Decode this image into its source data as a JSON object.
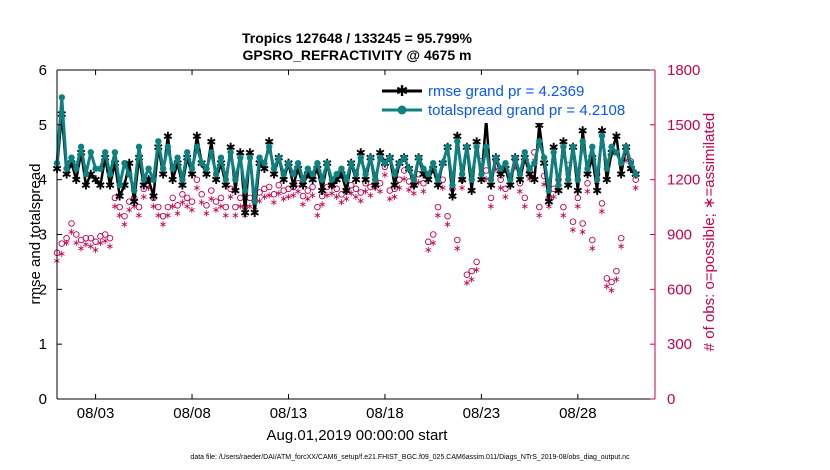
{
  "chart_data": {
    "type": "line",
    "title": "Tropics 127648 / 133245 = 95.799%",
    "subtitle": "GPSRO_REFRACTIVITY @ 4675 m",
    "xlabel": "Aug.01,2019 00:00:00 start",
    "ylabel": "rmse and totalspread",
    "ylabel_right": "# of obs: o=possible; ∗=assimilated",
    "xlim": [
      1.0,
      32.0
    ],
    "ylim": [
      0,
      6
    ],
    "ylim_right": [
      0,
      1800
    ],
    "x_ticks": [
      3,
      8,
      13,
      18,
      23,
      28
    ],
    "x_tick_labels": [
      "08/03",
      "08/08",
      "08/13",
      "08/18",
      "08/23",
      "08/28"
    ],
    "y_ticks": [
      0,
      1,
      2,
      3,
      4,
      5,
      6
    ],
    "y_ticks_right": [
      0,
      300,
      600,
      900,
      1200,
      1500,
      1800
    ],
    "legend_position": "top-right",
    "footnote": "data file: /Users/raeder/DAI/ATM_forcXX/CAM6_setup/f.e21.FHIST_BGC.f09_025.CAM6assim.011/Diags_NTrS_2019-08/obs_diag_output.nc",
    "time_step_days": 0.25,
    "series": [
      {
        "name": "rmse grand pr = 4.2369",
        "axis": "left",
        "color": "#000000",
        "marker": "star",
        "values": [
          4.2,
          5.2,
          4.1,
          4.3,
          4.0,
          4.5,
          3.9,
          4.1,
          4.0,
          3.9,
          4.4,
          3.9,
          4.3,
          3.7,
          3.9,
          4.3,
          3.6,
          4.4,
          3.9,
          4.0,
          3.7,
          4.6,
          4.1,
          4.8,
          4.0,
          4.3,
          3.9,
          4.4,
          4.1,
          4.8,
          4.3,
          4.1,
          4.7,
          4.0,
          4.3,
          3.9,
          4.6,
          3.8,
          4.5,
          3.4,
          4.5,
          3.4,
          4.3,
          4.2,
          4.7,
          4.1,
          4.4,
          4.0,
          4.3,
          3.9,
          4.2,
          3.9,
          4.1,
          4.0,
          4.2,
          3.8,
          4.3,
          3.9,
          4.0,
          4.1,
          3.8,
          4.3,
          4.0,
          4.5,
          4.0,
          4.4,
          3.9,
          4.5,
          4.3,
          4.4,
          3.9,
          4.3,
          4.4,
          4.2,
          3.9,
          4.4,
          4.1,
          4.0,
          4.2,
          3.9,
          4.3,
          4.6,
          3.7,
          4.8,
          4.0,
          4.6,
          3.8,
          4.7,
          4.0,
          5.1,
          3.9,
          4.4,
          4.1,
          4.2,
          3.9,
          4.4,
          4.0,
          4.4,
          4.1,
          4.0,
          5.0,
          4.3,
          3.6,
          4.6,
          3.8,
          4.7,
          3.9,
          4.6,
          3.8,
          4.9,
          4.1,
          4.4,
          3.8,
          4.9,
          4.0,
          4.5,
          4.8,
          4.1,
          4.6,
          4.2,
          4.1
        ]
      },
      {
        "name": "totalspread grand pr = 4.2108",
        "axis": "left",
        "color": "#0e8080",
        "marker": "circle",
        "values": [
          4.3,
          5.5,
          4.2,
          4.4,
          4.2,
          4.6,
          4.1,
          4.5,
          4.2,
          4.2,
          4.5,
          4.1,
          4.5,
          3.9,
          4.3,
          4.1,
          3.8,
          4.6,
          4.0,
          4.2,
          4.0,
          4.7,
          4.2,
          4.6,
          4.2,
          4.4,
          4.0,
          4.5,
          4.2,
          4.6,
          4.3,
          4.2,
          4.5,
          4.1,
          4.4,
          4.0,
          4.5,
          4.0,
          4.4,
          3.8,
          4.4,
          3.6,
          4.4,
          4.3,
          4.6,
          4.2,
          4.4,
          4.1,
          4.3,
          4.1,
          4.3,
          4.0,
          4.2,
          4.1,
          4.3,
          4.0,
          4.3,
          4.0,
          4.1,
          4.2,
          4.0,
          4.3,
          4.1,
          4.4,
          4.1,
          4.4,
          4.0,
          4.4,
          4.3,
          4.4,
          4.1,
          4.3,
          4.4,
          4.2,
          4.0,
          4.4,
          4.2,
          4.1,
          4.3,
          4.0,
          4.3,
          4.6,
          3.9,
          4.7,
          4.1,
          4.6,
          4.0,
          4.6,
          4.1,
          4.6,
          4.0,
          4.4,
          4.2,
          4.3,
          4.0,
          4.4,
          4.1,
          4.5,
          4.2,
          4.3,
          4.7,
          4.4,
          3.8,
          4.5,
          3.9,
          4.6,
          4.0,
          4.6,
          4.0,
          4.7,
          4.2,
          4.6,
          4.0,
          4.8,
          4.2,
          4.6,
          4.5,
          4.3,
          4.6,
          4.3,
          4.1
        ]
      },
      {
        "name": "possible",
        "axis": "right",
        "color": "#c8004f",
        "marker": "open-circle",
        "values": [
          800,
          850,
          880,
          960,
          900,
          870,
          880,
          880,
          860,
          890,
          900,
          880,
          1100,
          1050,
          1000,
          1080,
          1100,
          1050,
          1150,
          1200,
          1100,
          1050,
          1000,
          1050,
          1100,
          1060,
          1120,
          1100,
          1080,
          1200,
          1120,
          1060,
          1140,
          1080,
          1100,
          1050,
          1150,
          1050,
          1100,
          1050,
          1100,
          1080,
          1130,
          1150,
          1160,
          1120,
          1170,
          1140,
          1150,
          1160,
          1180,
          1110,
          1140,
          1160,
          1050,
          1110,
          1160,
          1170,
          1150,
          1120,
          1140,
          1170,
          1150,
          1130,
          1180,
          1160,
          1200,
          1180,
          1270,
          1140,
          1150,
          1200,
          1250,
          1190,
          1170,
          1230,
          1180,
          860,
          900,
          1050,
          1200,
          1000,
          1150,
          870,
          1200,
          680,
          700,
          750,
          1300,
          1250,
          1100,
          1300,
          1200,
          1150,
          1220,
          1310,
          1180,
          1100,
          1250,
          1350,
          1050,
          1220,
          1100,
          1150,
          1200,
          1050,
          1280,
          970,
          1100,
          960,
          1180,
          870,
          1230,
          1070,
          660,
          640,
          700,
          880,
          1350,
          1300,
          1200
        ]
      },
      {
        "name": "assimilated",
        "axis": "right",
        "color": "#c8004f",
        "marker": "asterisk",
        "values": [
          760,
          800,
          860,
          920,
          860,
          830,
          850,
          840,
          820,
          860,
          870,
          840,
          1060,
          1010,
          960,
          1040,
          1060,
          1010,
          1110,
          1160,
          1060,
          1010,
          960,
          1010,
          1060,
          1020,
          1080,
          1060,
          1040,
          1160,
          1080,
          1020,
          1100,
          1040,
          1060,
          1010,
          1110,
          1010,
          1060,
          1010,
          1060,
          1040,
          1090,
          1110,
          1120,
          1080,
          1130,
          1100,
          1110,
          1120,
          1140,
          1070,
          1100,
          1120,
          1010,
          1070,
          1120,
          1130,
          1110,
          1080,
          1100,
          1130,
          1110,
          1090,
          1140,
          1120,
          1160,
          1140,
          1230,
          1100,
          1110,
          1160,
          1210,
          1150,
          1130,
          1190,
          1140,
          820,
          860,
          1010,
          1160,
          960,
          1110,
          830,
          1160,
          640,
          660,
          710,
          1260,
          1210,
          1060,
          1260,
          1160,
          1110,
          1180,
          1270,
          1140,
          1060,
          1210,
          1310,
          1010,
          1180,
          1060,
          1110,
          1160,
          1010,
          1240,
          930,
          1060,
          920,
          1140,
          830,
          1190,
          1030,
          620,
          600,
          660,
          840,
          1310,
          1260,
          1160
        ]
      }
    ]
  }
}
